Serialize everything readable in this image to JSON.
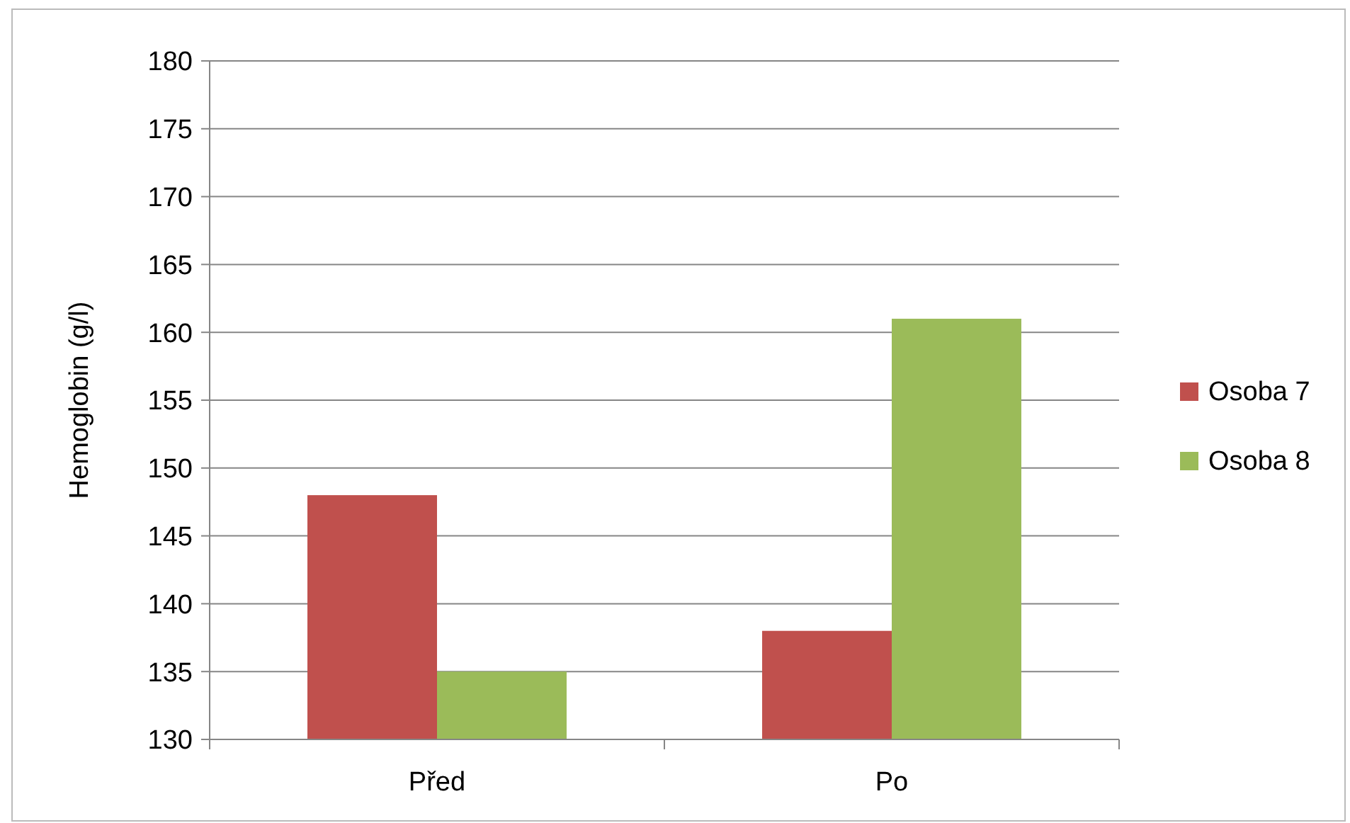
{
  "chart_data": {
    "type": "bar",
    "ylabel": "Hemoglobin (g/l)",
    "categories": [
      "Před",
      "Po"
    ],
    "series": [
      {
        "name": "Osoba 7",
        "color": "#c0504d",
        "values": [
          148,
          138
        ]
      },
      {
        "name": "Osoba 8",
        "color": "#9bbb59",
        "values": [
          135,
          161
        ]
      }
    ],
    "ylim": [
      130,
      180
    ],
    "yticks": [
      130,
      135,
      140,
      145,
      150,
      155,
      160,
      165,
      170,
      175,
      180
    ],
    "grid": "y",
    "legend": "right"
  }
}
